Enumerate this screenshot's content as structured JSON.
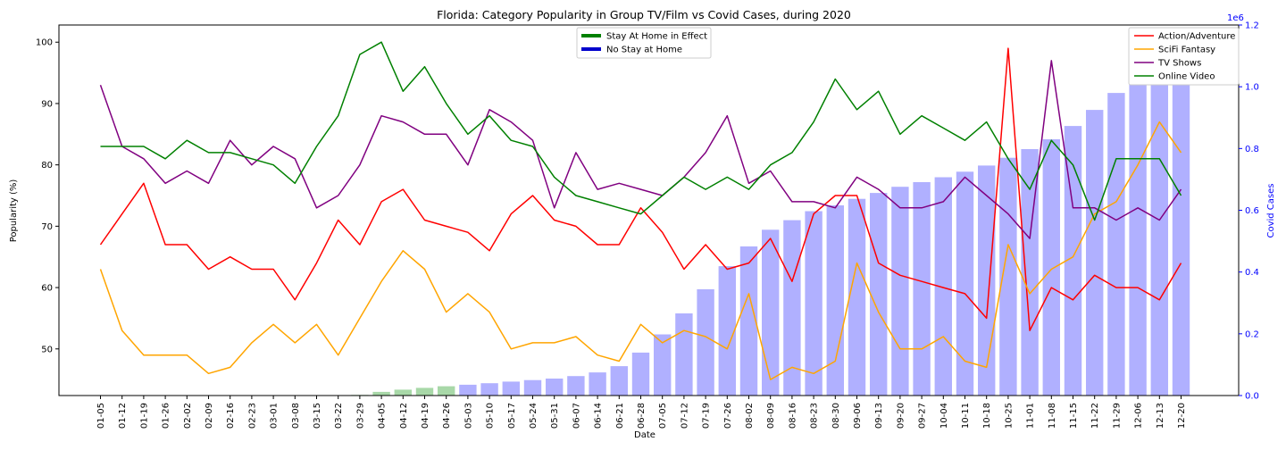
{
  "chart_data": {
    "type": "line",
    "title": "Florida: Category Popularity in Group TV/Film vs Covid Cases, during 2020",
    "xlabel": "Date",
    "ylabel": "Popularity (%)",
    "y2label": "Covid Cases",
    "y2_multiplier_label": "1e6",
    "ylim": [
      42.4,
      102.8
    ],
    "y2lim": [
      0,
      1.2
    ],
    "yticks": [
      "50",
      "60",
      "70",
      "80",
      "90",
      "100"
    ],
    "y2ticks": [
      "0.0",
      "0.2",
      "0.4",
      "0.6",
      "0.8",
      "1.0",
      "1.2"
    ],
    "categories": [
      "01-05",
      "01-12",
      "01-19",
      "01-26",
      "02-02",
      "02-09",
      "02-16",
      "02-23",
      "03-01",
      "03-08",
      "03-15",
      "03-22",
      "03-29",
      "04-05",
      "04-12",
      "04-19",
      "04-26",
      "05-03",
      "05-10",
      "05-17",
      "05-24",
      "05-31",
      "06-07",
      "06-14",
      "06-21",
      "06-28",
      "07-05",
      "07-12",
      "07-19",
      "07-26",
      "08-02",
      "08-09",
      "08-16",
      "08-23",
      "08-30",
      "09-06",
      "09-13",
      "09-20",
      "09-27",
      "10-04",
      "10-11",
      "10-18",
      "10-25",
      "11-01",
      "11-08",
      "11-15",
      "11-22",
      "11-29",
      "12-06",
      "12-13",
      "12-20"
    ],
    "series": [
      {
        "name": "Action/Adventure",
        "color": "#ff0000",
        "values": [
          67,
          72,
          77,
          67,
          67,
          63,
          65,
          63,
          63,
          58,
          64,
          71,
          67,
          74,
          76,
          71,
          70,
          69,
          66,
          72,
          75,
          71,
          70,
          67,
          67,
          73,
          69,
          63,
          67,
          63,
          64,
          68,
          61,
          72,
          75,
          75,
          64,
          62,
          61,
          60,
          59,
          55,
          99,
          53,
          60,
          58,
          62,
          60,
          60,
          58,
          64
        ]
      },
      {
        "name": "SciFi Fantasy",
        "color": "#ffa500",
        "values": [
          63,
          53,
          49,
          49,
          49,
          46,
          47,
          51,
          54,
          51,
          54,
          49,
          55,
          61,
          66,
          63,
          56,
          59,
          56,
          50,
          51,
          51,
          52,
          49,
          48,
          54,
          51,
          53,
          52,
          50,
          59,
          45,
          47,
          46,
          48,
          64,
          56,
          50,
          50,
          52,
          48,
          47,
          67,
          59,
          63,
          65,
          72,
          74,
          80,
          87,
          82
        ]
      },
      {
        "name": "TV Shows",
        "color": "#800080",
        "values": [
          93,
          83,
          81,
          77,
          79,
          77,
          84,
          80,
          83,
          81,
          73,
          75,
          80,
          88,
          87,
          85,
          85,
          80,
          89,
          87,
          84,
          73,
          82,
          76,
          77,
          76,
          75,
          78,
          82,
          88,
          77,
          79,
          74,
          74,
          73,
          78,
          76,
          73,
          73,
          74,
          78,
          75,
          72,
          68,
          97,
          73,
          73,
          71,
          73,
          71,
          76
        ]
      },
      {
        "name": "Online Video",
        "color": "#008000",
        "values": [
          83,
          83,
          83,
          81,
          84,
          82,
          82,
          81,
          80,
          77,
          83,
          88,
          98,
          100,
          92,
          96,
          90,
          85,
          88,
          84,
          83,
          78,
          75,
          74,
          73,
          72,
          75,
          78,
          76,
          78,
          76,
          80,
          82,
          87,
          94,
          89,
          92,
          85,
          88,
          86,
          84,
          87,
          81,
          76,
          84,
          80,
          71,
          81,
          81,
          81,
          75
        ]
      }
    ],
    "covid_cases_millions": [
      0,
      0,
      0,
      0,
      0,
      0,
      0,
      0,
      0,
      0,
      0,
      0,
      0.002,
      0.012,
      0.019,
      0.025,
      0.03,
      0.035,
      0.04,
      0.045,
      0.05,
      0.055,
      0.063,
      0.075,
      0.095,
      0.139,
      0.198,
      0.266,
      0.344,
      0.419,
      0.483,
      0.537,
      0.568,
      0.597,
      0.616,
      0.637,
      0.656,
      0.676,
      0.691,
      0.707,
      0.725,
      0.745,
      0.77,
      0.798,
      0.83,
      0.873,
      0.925,
      0.98,
      1.04,
      1.11,
      1.185
    ],
    "stay_home_weeks": [
      12,
      13,
      14,
      15,
      16
    ],
    "bar_colors": {
      "stay_home": "#a8d8a8",
      "no_stay_home": "#b0b0ff"
    },
    "legend_top": [
      {
        "label": "Stay At Home in Effect",
        "color": "#008000"
      },
      {
        "label": "No Stay at Home",
        "color": "#0000cc"
      }
    ],
    "axis2_color": "#0000ff"
  }
}
